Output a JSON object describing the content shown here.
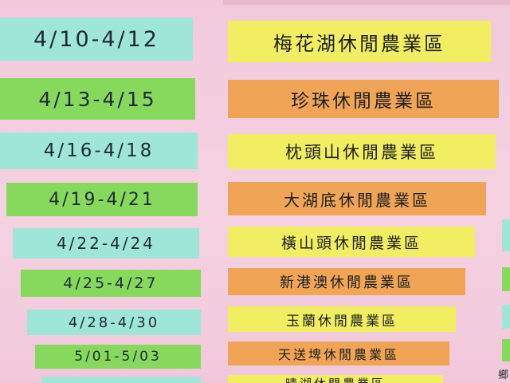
{
  "rows": [
    {
      "date": "4/10-4/12",
      "area": "梅花湖休閒農業區",
      "date_color": "teal",
      "area_color": "yellow"
    },
    {
      "date": "4/13-4/15",
      "area": "珍珠休閒農業區",
      "date_color": "green",
      "area_color": "orange"
    },
    {
      "date": "4/16-4/18",
      "area": "枕頭山休閒農業區",
      "date_color": "teal",
      "area_color": "yellow"
    },
    {
      "date": "4/19-4/21",
      "area": "大湖底休閒農業區",
      "date_color": "green",
      "area_color": "orange"
    },
    {
      "date": "4/22-4/24",
      "area": "橫山頭休閒農業區",
      "date_color": "teal",
      "area_color": "yellow"
    },
    {
      "date": "4/25-4/27",
      "area": "新港澳休閒農業區",
      "date_color": "green",
      "area_color": "orange"
    },
    {
      "date": "4/28-4/30",
      "area": "玉蘭休閒農業區",
      "date_color": "teal",
      "area_color": "yellow"
    },
    {
      "date": "5/01-5/03",
      "area": "天送埤休閒農業區",
      "date_color": "green",
      "area_color": "orange"
    },
    {
      "date": "",
      "area": "晴湖休閒農業區",
      "date_color": "teal",
      "area_color": "yellow"
    }
  ],
  "colors": {
    "background": "#f4cfe0",
    "teal": "#9fe6d8",
    "green": "#86d95c",
    "yellow": "#f1ee62",
    "orange": "#f0a455"
  },
  "corner_text": "鄉"
}
